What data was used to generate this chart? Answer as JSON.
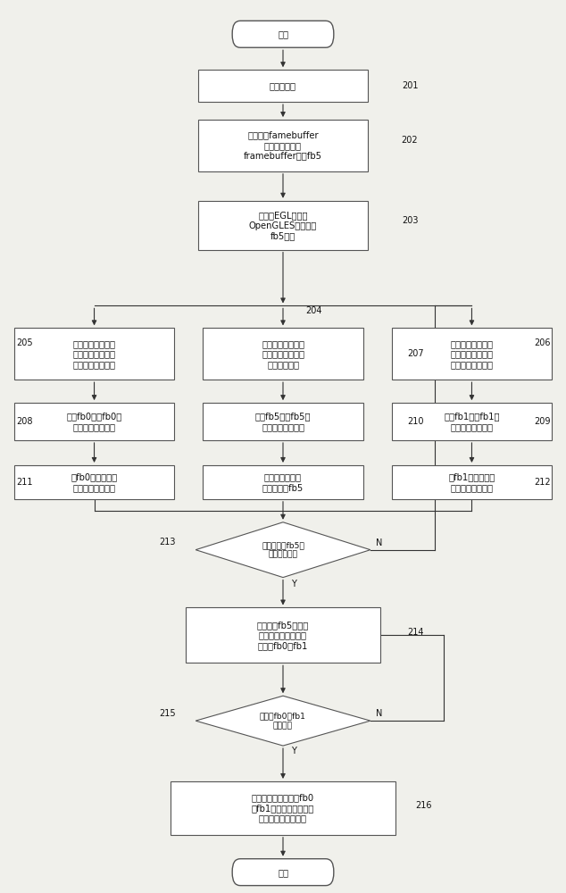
{
  "bg_color": "#f0f0eb",
  "box_color": "#ffffff",
  "box_edge": "#555555",
  "arrow_color": "#333333",
  "text_color": "#111111",
  "font_size": 7.2,
  "start_text": "开始",
  "end_text": "结束",
  "n201_text": "系统初始化",
  "n202_text": "加载虚拟famebuffer\n驱动，注册虚拟\nframebuffer设备fb5",
  "n203_text": "初始化EGL，使能\nOpenGLES接口，与\nfb5绑定",
  "n205_text": "申请与第一显示设\n备分辨率与像素格\n式相匹配内存大小",
  "n206_text": "申请与第一显示设\n备分辨率与像素格\n式相匹配内存大小",
  "n207_text": "申请与双屏图形分\n辨率与像素格式相\n匹配内存大小",
  "n208_text": "打开fb0，将fb0映\n射到进程地址空间",
  "n209_text": "打开fb1，将fb1映\n射到进程地址空间",
  "n210_text": "打开fb5，将fb5映\n射到进程地址空间",
  "n211_text": "将fb0与第一显示\n设备物理帧存绑定",
  "n212_text": "将fb1与第二显示\n设备物理帧存绑定",
  "n2102_text": "执行图形生成程\n序，存放于fb5",
  "n213_text": "双屏图形在fb5中\n是否填充完整",
  "n214_text": "分别拷贝fb5对应内\n存区域上下部分图形\n数据至fb0、fb1",
  "n215_text": "拷贝至fb0和fb1\n操作完成",
  "n216_text": "执行渲染显示命令将fb0\n和fb1数据送至第一显示\n设备和第二显示设备"
}
